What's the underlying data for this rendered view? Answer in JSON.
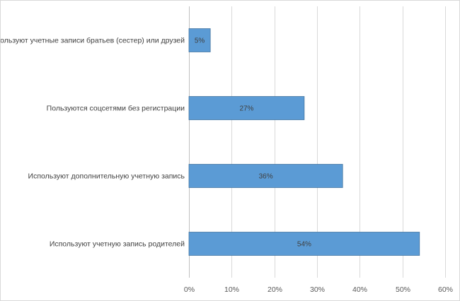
{
  "chart_data": {
    "type": "bar",
    "orientation": "horizontal",
    "categories": [
      "Используют учетные записи братьев (сестер) или друзей",
      "Пользуются соцсетями без регистрации",
      "Используют дополнительную учетную запись",
      "Используют учетную запись родителей"
    ],
    "values": [
      5,
      27,
      36,
      54
    ],
    "data_labels": [
      "5%",
      "27%",
      "36%",
      "54%"
    ],
    "xlim": [
      0,
      60
    ],
    "x_ticks": [
      0,
      10,
      20,
      30,
      40,
      50,
      60
    ],
    "x_tick_labels": [
      "0%",
      "10%",
      "20%",
      "30%",
      "40%",
      "50%",
      "60%"
    ],
    "bar_color": "#5b9bd5",
    "bar_edge_color": "#41719c",
    "gridlines": true,
    "title": "",
    "xlabel": "",
    "ylabel": ""
  }
}
